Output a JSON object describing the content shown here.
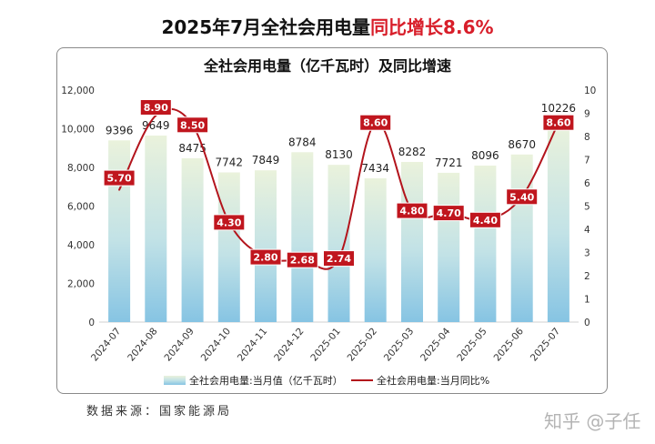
{
  "headline": {
    "prefix": "2025年7月全社会用电量",
    "highlight": "同比增长8.6%"
  },
  "source": "数据来源：国家能源局",
  "watermark": "知乎 @子任",
  "colors": {
    "headline_highlight": "#d81e2a",
    "line": "#b3141c",
    "line_label": "#c0161e",
    "bar_top": "#eaf2dc",
    "bar_mid": "#c2e2e6",
    "bar_bottom": "#86c4e3"
  },
  "chart_data": {
    "type": "bar",
    "title": "全社会用电量（亿千瓦时）及同比增速",
    "categories": [
      "2024-07",
      "2024-08",
      "2024-09",
      "2024-10",
      "2024-11",
      "2024-12",
      "2025-01",
      "2025-02",
      "2025-03",
      "2025-04",
      "2025-05",
      "2025-06",
      "2025-07"
    ],
    "series": [
      {
        "name": "全社会用电量:当月值（亿千瓦时）",
        "type": "bar",
        "axis": "left",
        "values": [
          9396,
          9649,
          8475,
          7742,
          7849,
          8784,
          8130,
          7434,
          8282,
          7721,
          8096,
          8670,
          10226
        ]
      },
      {
        "name": "全社会用电量:当月同比%",
        "type": "line",
        "axis": "right",
        "values": [
          5.7,
          8.9,
          8.5,
          4.3,
          2.8,
          2.68,
          2.74,
          8.6,
          4.8,
          4.7,
          4.4,
          5.4,
          8.6
        ]
      }
    ],
    "y_left": {
      "range": [
        0,
        12000
      ],
      "tick_labels": [
        "0",
        "2,000",
        "4,000",
        "6,000",
        "8,000",
        "10,000",
        "12,000"
      ]
    },
    "y_right": {
      "range": [
        0,
        10
      ],
      "tick_labels": [
        "0",
        "1",
        "2",
        "3",
        "4",
        "5",
        "6",
        "7",
        "8",
        "9",
        "10"
      ]
    },
    "grid": false,
    "legend": "bottom"
  }
}
